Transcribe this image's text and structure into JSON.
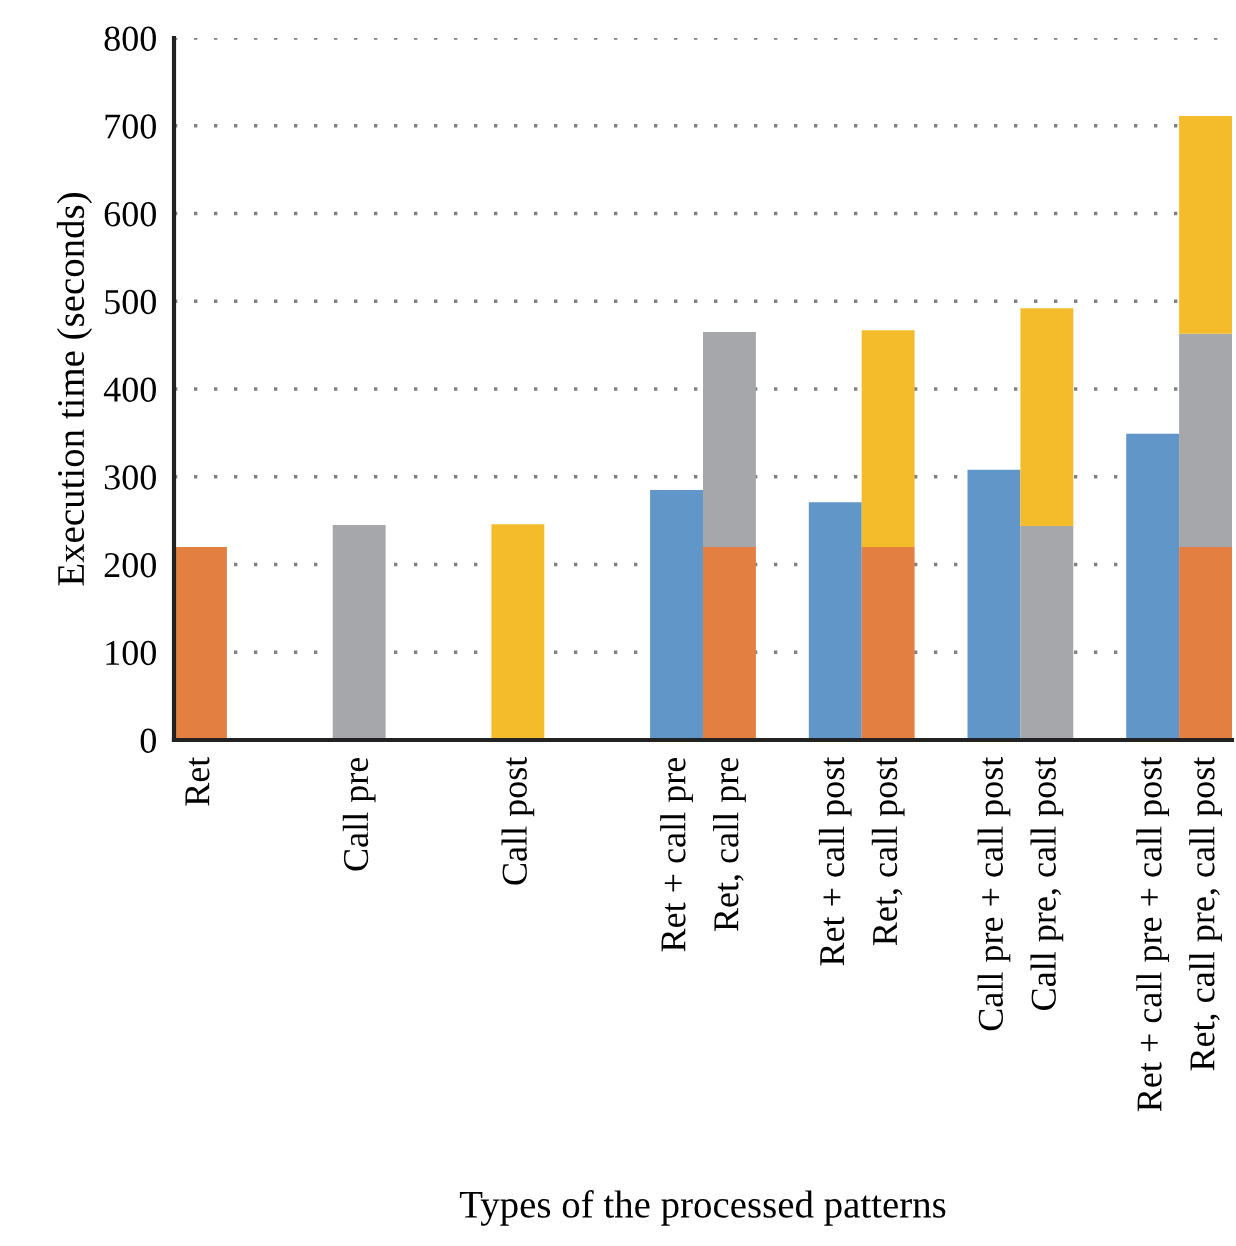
{
  "chart_data": {
    "type": "bar",
    "stacked": true,
    "xlabel": "Types of the processed patterns",
    "ylabel": "Execution time (seconds)",
    "categories": [
      "Ret",
      null,
      null,
      "Call pre",
      null,
      null,
      "Call post",
      null,
      null,
      "Ret + call pre",
      "Ret, call pre",
      null,
      "Ret + call post",
      "Ret, call post",
      null,
      "Call pre + call post",
      "Call pre, call post",
      null,
      "Ret + call pre + call post",
      "Ret, call pre, call post"
    ],
    "series": [
      {
        "color": "#6196c9",
        "values": [
          null,
          null,
          null,
          null,
          null,
          null,
          null,
          null,
          null,
          285,
          null,
          null,
          271,
          null,
          null,
          308,
          null,
          null,
          349,
          null
        ]
      },
      {
        "color": "#e27f41",
        "values": [
          220,
          null,
          null,
          null,
          null,
          null,
          null,
          null,
          null,
          null,
          220,
          null,
          null,
          220,
          null,
          null,
          null,
          null,
          null,
          220
        ]
      },
      {
        "color": "#a6a7aa",
        "values": [
          null,
          null,
          null,
          245,
          null,
          null,
          null,
          null,
          null,
          null,
          245,
          null,
          null,
          null,
          null,
          null,
          244,
          null,
          null,
          243
        ]
      },
      {
        "color": "#f4bc2b",
        "values": [
          null,
          null,
          null,
          null,
          null,
          null,
          246,
          null,
          null,
          null,
          null,
          null,
          null,
          247,
          null,
          null,
          248,
          null,
          null,
          248
        ]
      }
    ],
    "ylim": [
      0,
      800
    ],
    "yticks": [
      0,
      100,
      200,
      300,
      400,
      500,
      600,
      700,
      800
    ],
    "grid": "y"
  }
}
